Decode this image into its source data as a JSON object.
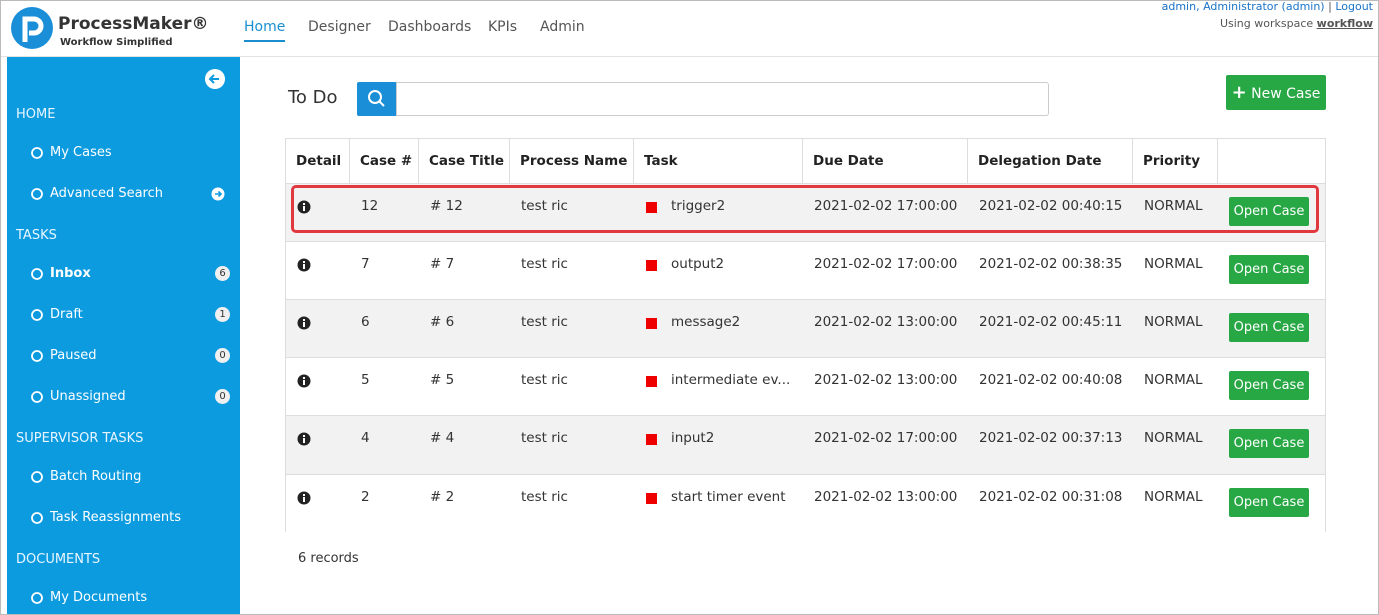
{
  "header": {
    "brand": "ProcessMaker®",
    "tagline": "Workflow Simplified",
    "nav": [
      "Home",
      "Designer",
      "Dashboards",
      "KPIs",
      "Admin"
    ],
    "user": "admin, Administrator (admin)",
    "separator": "|",
    "logout": "Logout",
    "workspace_label": "Using workspace",
    "workspace": "workflow"
  },
  "sidebar": {
    "sections": [
      {
        "title": "HOME",
        "items": [
          {
            "label": "My Cases"
          },
          {
            "label": "Advanced Search"
          }
        ]
      },
      {
        "title": "TASKS",
        "items": [
          {
            "label": "Inbox",
            "count": 6
          },
          {
            "label": "Draft",
            "count": 1
          },
          {
            "label": "Paused",
            "count": 0
          },
          {
            "label": "Unassigned",
            "count": 0
          }
        ]
      },
      {
        "title": "SUPERVISOR TASKS",
        "items": [
          {
            "label": "Batch Routing"
          },
          {
            "label": "Task Reassignments"
          }
        ]
      },
      {
        "title": "DOCUMENTS",
        "items": [
          {
            "label": "My Documents"
          }
        ]
      }
    ]
  },
  "main": {
    "title": "To Do",
    "new_case": "New Case",
    "table": {
      "headers": [
        "Detail",
        "Case #",
        "Case Title",
        "Process Name",
        "Task",
        "Due Date",
        "Delegation Date",
        "Priority"
      ],
      "rows": [
        {
          "case": 12,
          "title": "# 12",
          "process": "test ric",
          "task": "trigger2",
          "due": "2021-02-02 17:00:00",
          "delegation": "2021-02-02 00:40:15",
          "priority": "NORMAL",
          "action": "Open Case"
        },
        {
          "case": 7,
          "title": "# 7",
          "process": "test ric",
          "task": "output2",
          "due": "2021-02-02 17:00:00",
          "delegation": "2021-02-02 00:38:35",
          "priority": "NORMAL",
          "action": "Open Case"
        },
        {
          "case": 6,
          "title": "# 6",
          "process": "test ric",
          "task": "message2",
          "due": "2021-02-02 13:00:00",
          "delegation": "2021-02-02 00:45:11",
          "priority": "NORMAL",
          "action": "Open Case"
        },
        {
          "case": 5,
          "title": "# 5",
          "process": "test ric",
          "task": "intermediate ev...",
          "due": "2021-02-02 13:00:00",
          "delegation": "2021-02-02 00:40:08",
          "priority": "NORMAL",
          "action": "Open Case"
        },
        {
          "case": 4,
          "title": "# 4",
          "process": "test ric",
          "task": "input2",
          "due": "2021-02-02 17:00:00",
          "delegation": "2021-02-02 00:37:13",
          "priority": "NORMAL",
          "action": "Open Case"
        },
        {
          "case": 2,
          "title": "# 2",
          "process": "test ric",
          "task": "start timer event",
          "due": "2021-02-02 13:00:00",
          "delegation": "2021-02-02 00:31:08",
          "priority": "NORMAL",
          "action": "Open Case"
        }
      ]
    },
    "records": "6 records"
  }
}
